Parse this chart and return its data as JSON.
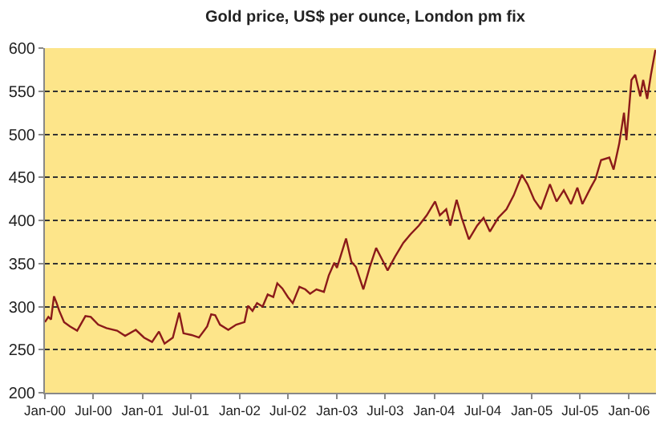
{
  "chart_data": {
    "type": "line",
    "title": "Gold price, US$ per ounce, London pm fix",
    "x": [
      "2000-01-01",
      "2000-01-14",
      "2000-01-24",
      "2000-02-04",
      "2000-02-14",
      "2000-02-24",
      "2000-03-13",
      "2000-04-04",
      "2000-05-01",
      "2000-06-01",
      "2000-06-21",
      "2000-07-19",
      "2000-08-19",
      "2000-09-28",
      "2000-10-28",
      "2000-12-07",
      "2001-01-07",
      "2001-02-06",
      "2001-03-04",
      "2001-03-25",
      "2001-04-25",
      "2001-05-19",
      "2001-06-04",
      "2001-07-04",
      "2001-08-01",
      "2001-09-01",
      "2001-09-16",
      "2001-10-01",
      "2001-10-19",
      "2001-11-19",
      "2001-12-19",
      "2002-01-19",
      "2002-02-01",
      "2002-02-18",
      "2002-03-07",
      "2002-03-28",
      "2002-04-16",
      "2002-05-07",
      "2002-05-22",
      "2002-06-10",
      "2002-07-01",
      "2002-07-19",
      "2002-08-13",
      "2002-09-04",
      "2002-09-22",
      "2002-10-16",
      "2002-11-13",
      "2002-12-01",
      "2002-12-22",
      "2003-01-01",
      "2003-02-04",
      "2003-02-24",
      "2003-03-13",
      "2003-04-10",
      "2003-05-04",
      "2003-05-28",
      "2003-06-22",
      "2003-07-10",
      "2003-08-07",
      "2003-09-07",
      "2003-10-04",
      "2003-11-04",
      "2003-12-04",
      "2004-01-04",
      "2004-01-22",
      "2004-02-15",
      "2004-03-01",
      "2004-03-25",
      "2004-04-13",
      "2004-05-10",
      "2004-06-10",
      "2004-07-04",
      "2004-07-28",
      "2004-08-28",
      "2004-09-28",
      "2004-10-25",
      "2004-11-25",
      "2004-12-16",
      "2005-01-10",
      "2005-02-04",
      "2005-03-10",
      "2005-04-04",
      "2005-05-01",
      "2005-05-28",
      "2005-06-21",
      "2005-07-10",
      "2005-08-10",
      "2005-08-28",
      "2005-09-18",
      "2005-10-19",
      "2005-11-04",
      "2005-11-25",
      "2005-12-13",
      "2005-12-22",
      "2006-01-10",
      "2006-01-24",
      "2006-02-12",
      "2006-02-23",
      "2006-03-10",
      "2006-03-24",
      "2006-04-10"
    ],
    "series": [
      {
        "color": "#8b1a1a",
        "values": [
          282,
          288,
          285,
          312,
          304,
          295,
          282,
          277,
          272,
          289,
          288,
          279,
          275,
          272,
          266,
          273,
          264,
          259,
          271,
          257,
          264,
          293,
          269,
          267,
          264,
          277,
          291,
          290,
          279,
          273,
          279,
          282,
          301,
          295,
          304,
          300,
          314,
          311,
          327,
          321,
          311,
          304,
          323,
          320,
          315,
          320,
          317,
          336,
          351,
          345,
          379,
          352,
          346,
          320,
          346,
          368,
          353,
          342,
          358,
          374,
          384,
          394,
          406,
          422,
          406,
          413,
          394,
          424,
          403,
          378,
          394,
          403,
          387,
          403,
          413,
          429,
          453,
          442,
          424,
          413,
          442,
          422,
          435,
          419,
          438,
          419,
          438,
          448,
          470,
          473,
          459,
          489,
          525,
          493,
          563,
          569,
          544,
          563,
          541,
          569,
          598
        ]
      }
    ],
    "xlim": [
      "2000-01-01",
      "2006-04-12"
    ],
    "xticks": [
      {
        "value": "2000-01-01",
        "label": "Jan-00"
      },
      {
        "value": "2000-07-01",
        "label": "Jul-00"
      },
      {
        "value": "2001-01-01",
        "label": "Jan-01"
      },
      {
        "value": "2001-07-01",
        "label": "Jul-01"
      },
      {
        "value": "2002-01-01",
        "label": "Jan-02"
      },
      {
        "value": "2002-07-01",
        "label": "Jul-02"
      },
      {
        "value": "2003-01-01",
        "label": "Jan-03"
      },
      {
        "value": "2003-07-01",
        "label": "Jul-03"
      },
      {
        "value": "2004-01-01",
        "label": "Jan-04"
      },
      {
        "value": "2004-07-01",
        "label": "Jul-04"
      },
      {
        "value": "2005-01-01",
        "label": "Jan-05"
      },
      {
        "value": "2005-07-01",
        "label": "Jul-05"
      },
      {
        "value": "2006-01-01",
        "label": "Jan-06"
      }
    ],
    "ylim": [
      200,
      600
    ],
    "yticks": [
      200,
      250,
      300,
      350,
      400,
      450,
      500,
      550,
      600
    ],
    "grid": "y",
    "marker": "none",
    "line_style": "solid"
  }
}
